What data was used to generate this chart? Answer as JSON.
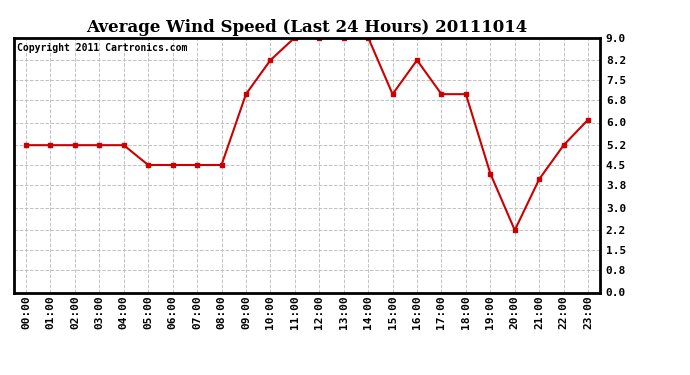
{
  "title": "Average Wind Speed (Last 24 Hours) 20111014",
  "copyright_text": "Copyright 2011 Cartronics.com",
  "x_labels": [
    "00:00",
    "01:00",
    "02:00",
    "03:00",
    "04:00",
    "05:00",
    "06:00",
    "07:00",
    "08:00",
    "09:00",
    "10:00",
    "11:00",
    "12:00",
    "13:00",
    "14:00",
    "15:00",
    "16:00",
    "17:00",
    "18:00",
    "19:00",
    "20:00",
    "21:00",
    "22:00",
    "23:00"
  ],
  "y_values": [
    5.2,
    5.2,
    5.2,
    5.2,
    5.2,
    4.5,
    4.5,
    4.5,
    4.5,
    7.0,
    8.2,
    9.0,
    9.0,
    9.0,
    9.0,
    7.0,
    8.2,
    7.0,
    7.0,
    4.2,
    2.2,
    4.0,
    5.2,
    6.1
  ],
  "line_color": "#cc0000",
  "marker": "s",
  "marker_size": 3.5,
  "background_color": "#ffffff",
  "grid_color": "#bbbbbb",
  "y_ticks": [
    0.0,
    0.8,
    1.5,
    2.2,
    3.0,
    3.8,
    4.5,
    5.2,
    6.0,
    6.8,
    7.5,
    8.2,
    9.0
  ],
  "ylim": [
    0.0,
    9.0
  ],
  "title_fontsize": 12,
  "copyright_fontsize": 7,
  "tick_fontsize": 8,
  "spine_linewidth": 2.0
}
